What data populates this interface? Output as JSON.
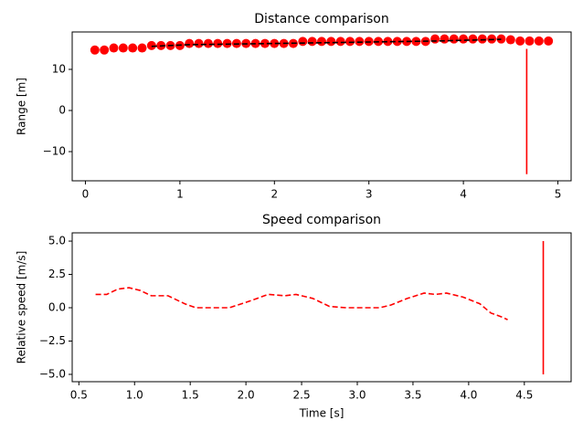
{
  "chart_data": [
    {
      "type": "line",
      "title": "Distance comparison",
      "y_label": "Range [m]",
      "xlim": [
        -0.14,
        5.14
      ],
      "xticks": [
        0,
        1,
        2,
        3,
        4,
        5
      ],
      "ylim": [
        -17.1,
        19.1
      ],
      "yticks": [
        {
          "value": -10,
          "label": "−10"
        },
        0,
        10
      ],
      "series": [
        {
          "kind": "scatter",
          "color": "#ff0000",
          "x": [
            0.1,
            0.2,
            0.3,
            0.4,
            0.5,
            0.6,
            0.7,
            0.8,
            0.9,
            1.0,
            1.1,
            1.2,
            1.3,
            1.4,
            1.5,
            1.6,
            1.7,
            1.8,
            1.9,
            2.0,
            2.1,
            2.2,
            2.3,
            2.4,
            2.5,
            2.6,
            2.7,
            2.8,
            2.9,
            3.0,
            3.1,
            3.2,
            3.3,
            3.4,
            3.5,
            3.6,
            3.7,
            3.8,
            3.9,
            4.0,
            4.1,
            4.2,
            4.3,
            4.4,
            4.5,
            4.6,
            4.7,
            4.8,
            4.9
          ],
          "values": [
            14.7,
            14.7,
            15.2,
            15.2,
            15.2,
            15.2,
            15.8,
            15.8,
            15.8,
            15.8,
            16.3,
            16.3,
            16.3,
            16.3,
            16.3,
            16.3,
            16.3,
            16.3,
            16.3,
            16.3,
            16.3,
            16.3,
            16.8,
            16.8,
            16.8,
            16.8,
            16.8,
            16.8,
            16.8,
            16.8,
            16.8,
            16.8,
            16.8,
            16.8,
            16.8,
            16.8,
            17.4,
            17.4,
            17.4,
            17.4,
            17.4,
            17.4,
            17.4,
            17.4,
            17.2,
            16.9,
            16.9,
            16.9,
            16.9
          ]
        },
        {
          "kind": "line",
          "dashed": true,
          "color": "#000000",
          "x": [
            0.7,
            1.1,
            2.3,
            3.7,
            4.4
          ],
          "values": [
            15.6,
            16.0,
            16.4,
            16.9,
            17.3
          ]
        },
        {
          "kind": "line",
          "dashed": false,
          "color": "#ff0000",
          "x": [
            4.67,
            4.67
          ],
          "values": [
            -15.5,
            15
          ]
        }
      ]
    },
    {
      "type": "line",
      "title": "Speed comparison",
      "x_label": "Time [s]",
      "y_label": "Relative speed [m/s]",
      "xlim": [
        0.44,
        4.92
      ],
      "xticks": [
        {
          "value": 0.5,
          "label": "0.5"
        },
        {
          "value": 1,
          "label": "1.0"
        },
        {
          "value": 1.5,
          "label": "1.5"
        },
        {
          "value": 2,
          "label": "2.0"
        },
        {
          "value": 2.5,
          "label": "2.5"
        },
        {
          "value": 3,
          "label": "3.0"
        },
        {
          "value": 3.5,
          "label": "3.5"
        },
        {
          "value": 4,
          "label": "4.0"
        },
        {
          "value": 4.5,
          "label": "4.5"
        }
      ],
      "ylim": [
        -5.55,
        5.62
      ],
      "yticks": [
        {
          "value": -5,
          "label": "−5.0"
        },
        {
          "value": -2.5,
          "label": "−2.5"
        },
        {
          "value": 0,
          "label": "0.0"
        },
        {
          "value": 2.5,
          "label": "2.5"
        },
        {
          "value": 5,
          "label": "5.0"
        }
      ],
      "series": [
        {
          "kind": "line",
          "dashed": true,
          "color": "#ff0000",
          "x": [
            0.65,
            0.75,
            0.85,
            0.95,
            1.05,
            1.15,
            1.3,
            1.45,
            1.55,
            1.7,
            1.85,
            2.0,
            2.2,
            2.35,
            2.45,
            2.6,
            2.75,
            2.9,
            3.1,
            3.2,
            3.3,
            3.45,
            3.6,
            3.7,
            3.8,
            3.95,
            4.1,
            4.2,
            4.3,
            4.35
          ],
          "values": [
            1.0,
            1.0,
            1.4,
            1.5,
            1.3,
            0.9,
            0.9,
            0.3,
            0,
            0,
            0,
            0.4,
            1.0,
            0.9,
            1.0,
            0.7,
            0.1,
            0,
            0,
            0,
            0.2,
            0.7,
            1.1,
            1.0,
            1.1,
            0.8,
            0.3,
            -0.4,
            -0.7,
            -0.9
          ]
        },
        {
          "kind": "line",
          "dashed": false,
          "color": "#ff0000",
          "x": [
            4.67,
            4.67
          ],
          "values": [
            -5,
            5
          ]
        }
      ]
    }
  ]
}
